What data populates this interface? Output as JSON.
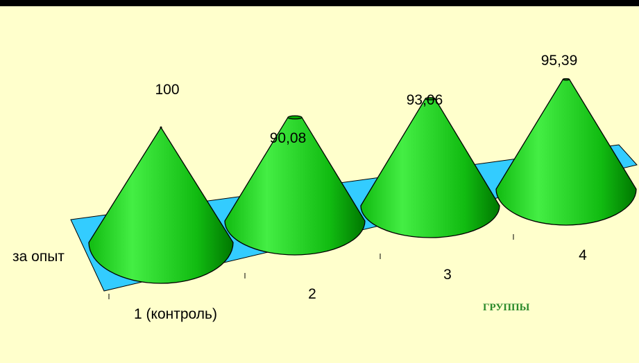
{
  "colors": {
    "background": "#ffffcc",
    "top_bar": "#000000",
    "floor": "#33ccff",
    "cone_light": "#44ee44",
    "cone_mid": "#11bb11",
    "cone_dark": "#007700",
    "cone_top": "#00aa00",
    "axis_title": "#2a8a2a"
  },
  "chart_data": {
    "type": "bar",
    "bar_shape": "3d-cone",
    "categories": [
      "1 (контроль)",
      "2",
      "3",
      "4"
    ],
    "series": [
      {
        "values": [
          100,
          90.08,
          93.06,
          95.39
        ]
      }
    ],
    "data_labels": [
      "100",
      "90,08",
      "93,06",
      "95,39"
    ],
    "series_axis_label": "за опыт",
    "xlabel": "ГРУППЫ",
    "ylabel": "",
    "ylim": [
      0,
      100
    ],
    "grid": false,
    "legend": "none"
  }
}
